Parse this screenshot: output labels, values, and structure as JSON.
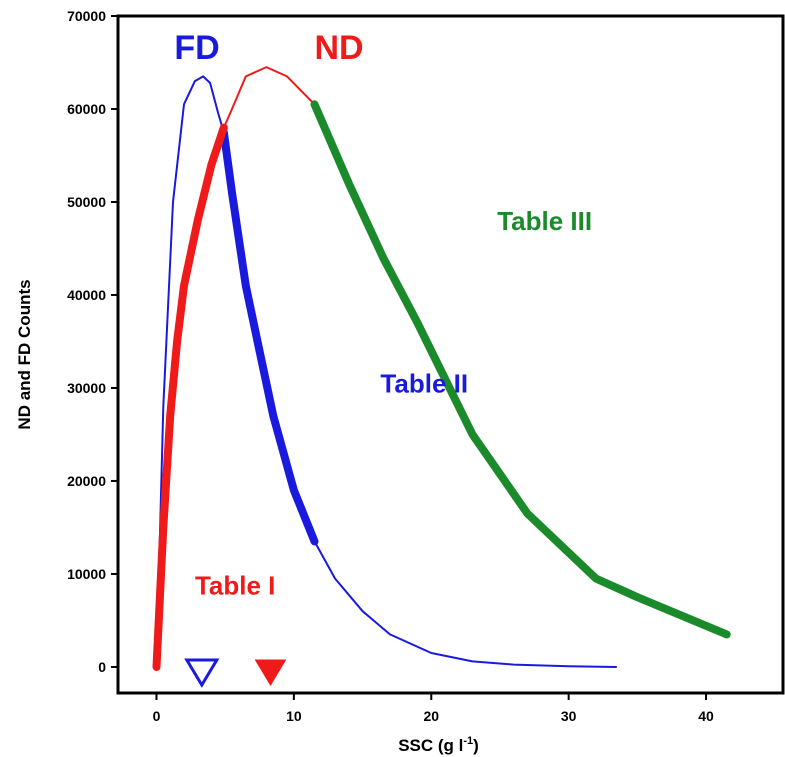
{
  "chart_data": {
    "type": "line",
    "title": "",
    "xlabel": "SSC (g l",
    "xlabel_sup": "-1",
    "xlabel_close": ")",
    "ylabel": "ND and FD Counts",
    "xlim": [
      -2.8,
      45.6
    ],
    "ylim": [
      -2800,
      70000
    ],
    "xticks": [
      0,
      10,
      20,
      30,
      40
    ],
    "yticks": [
      0,
      10000,
      20000,
      30000,
      40000,
      50000,
      60000,
      70000
    ],
    "xtick_labels": [
      "0",
      "10",
      "20",
      "30",
      "40"
    ],
    "ytick_labels": [
      "0",
      "10000",
      "20000",
      "30000",
      "40000",
      "50000",
      "60000",
      "70000"
    ],
    "grid": false,
    "series": [
      {
        "name": "FD",
        "color": "#1a1adf",
        "points": [
          [
            0,
            0
          ],
          [
            0.5,
            28000
          ],
          [
            1.2,
            50000
          ],
          [
            2,
            60500
          ],
          [
            2.8,
            63000
          ],
          [
            3.4,
            63500
          ],
          [
            3.9,
            62800
          ],
          [
            4.5,
            59500
          ],
          [
            4.9,
            57500
          ],
          [
            5.5,
            51000
          ],
          [
            6.5,
            41000
          ],
          [
            7.5,
            34000
          ],
          [
            8.5,
            27000
          ],
          [
            10,
            19000
          ],
          [
            11.5,
            13500
          ],
          [
            13,
            9500
          ],
          [
            15,
            6000
          ],
          [
            17,
            3500
          ],
          [
            20,
            1500
          ],
          [
            23,
            600
          ],
          [
            26,
            250
          ],
          [
            30,
            80
          ],
          [
            33.5,
            0
          ]
        ],
        "thick_range": [
          4.9,
          11.5
        ]
      },
      {
        "name": "ND",
        "color": "#ef1a1a",
        "points": [
          [
            0,
            0
          ],
          [
            0.5,
            15000
          ],
          [
            1,
            27000
          ],
          [
            1.5,
            35000
          ],
          [
            2,
            41000
          ],
          [
            3,
            48000
          ],
          [
            4,
            54000
          ],
          [
            4.9,
            58000
          ],
          [
            5.5,
            60000
          ],
          [
            6.5,
            63500
          ],
          [
            8,
            64500
          ],
          [
            9.5,
            63500
          ],
          [
            11.5,
            60500
          ]
        ],
        "thick_range": [
          0,
          4.9
        ]
      },
      {
        "name": "",
        "color": "#1a8a2a",
        "points": [
          [
            11.5,
            60500
          ],
          [
            14,
            52000
          ],
          [
            16.5,
            44000
          ],
          [
            19,
            37000
          ],
          [
            23,
            25000
          ],
          [
            27,
            16500
          ],
          [
            32,
            9500
          ],
          [
            35,
            7500
          ],
          [
            41.5,
            3500
          ]
        ],
        "thick_range": [
          11.5,
          41.5
        ]
      }
    ],
    "annotations": [
      {
        "text": "FD",
        "color": "#1a1adf",
        "size": 34,
        "x": 1.3,
        "y": 65400
      },
      {
        "text": "ND",
        "color": "#ef1a1a",
        "size": 34,
        "x": 11.5,
        "y": 65400
      },
      {
        "text": "Table III",
        "color": "#1a8a2a",
        "size": 26,
        "x": 24.8,
        "y": 47000
      },
      {
        "text": "Table II",
        "color": "#1a1adf",
        "size": 26,
        "x": 16.3,
        "y": 29500
      },
      {
        "text": "Table I",
        "color": "#ef1a1a",
        "size": 26,
        "x": 2.8,
        "y": 7800
      }
    ],
    "markers": [
      {
        "shape": "triangle-down",
        "filled": false,
        "color": "#1a1adf",
        "x": 3.3
      },
      {
        "shape": "triangle-down",
        "filled": true,
        "color": "#ef1a1a",
        "x": 8.3
      }
    ]
  }
}
